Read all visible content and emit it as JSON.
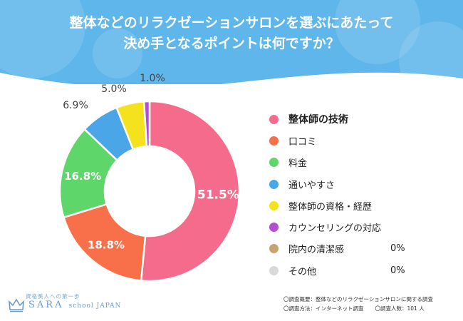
{
  "header": {
    "title_line1": "整体などのリラクゼーションサロンを選ぶにあたって",
    "title_line2": "決め手となるポイントは何ですか？"
  },
  "colors": {
    "banner": "#5fb6ea",
    "accent_text": "#ffffff"
  },
  "chart_data": {
    "type": "pie",
    "donut": true,
    "title": "整体などのリラクゼーションサロンを選ぶにあたって決め手となるポイントは何ですか？",
    "unit": "%",
    "categories": [
      "整体師の技術",
      "口コミ",
      "料金",
      "通いやすさ",
      "整体師の資格・経歴",
      "カウンセリングの対応",
      "院内の清潔感",
      "その他"
    ],
    "values": [
      51.5,
      18.8,
      16.8,
      6.9,
      5.0,
      1.0,
      0,
      0
    ],
    "labels": [
      "51.5%",
      "18.8%",
      "16.8%",
      "6.9%",
      "5.0%",
      "1.0%",
      "0%",
      "0%"
    ],
    "colors": [
      "#f46b8b",
      "#f8704a",
      "#5fd66a",
      "#4aa6e6",
      "#f3e21c",
      "#b04fcf",
      "#c9a36f",
      "#d9d9d9"
    ],
    "legend_position": "right"
  },
  "footer": {
    "logo_tagline": "資格美人への第一歩",
    "logo_name": "SARA",
    "logo_sub": "school JAPAN",
    "note_overview": "〇調査概要：整体などのリラクゼーションサロンに関する調査",
    "note_method": "〇調査方法：インターネット調査",
    "note_respondents": "〇調査人数：101 人"
  }
}
